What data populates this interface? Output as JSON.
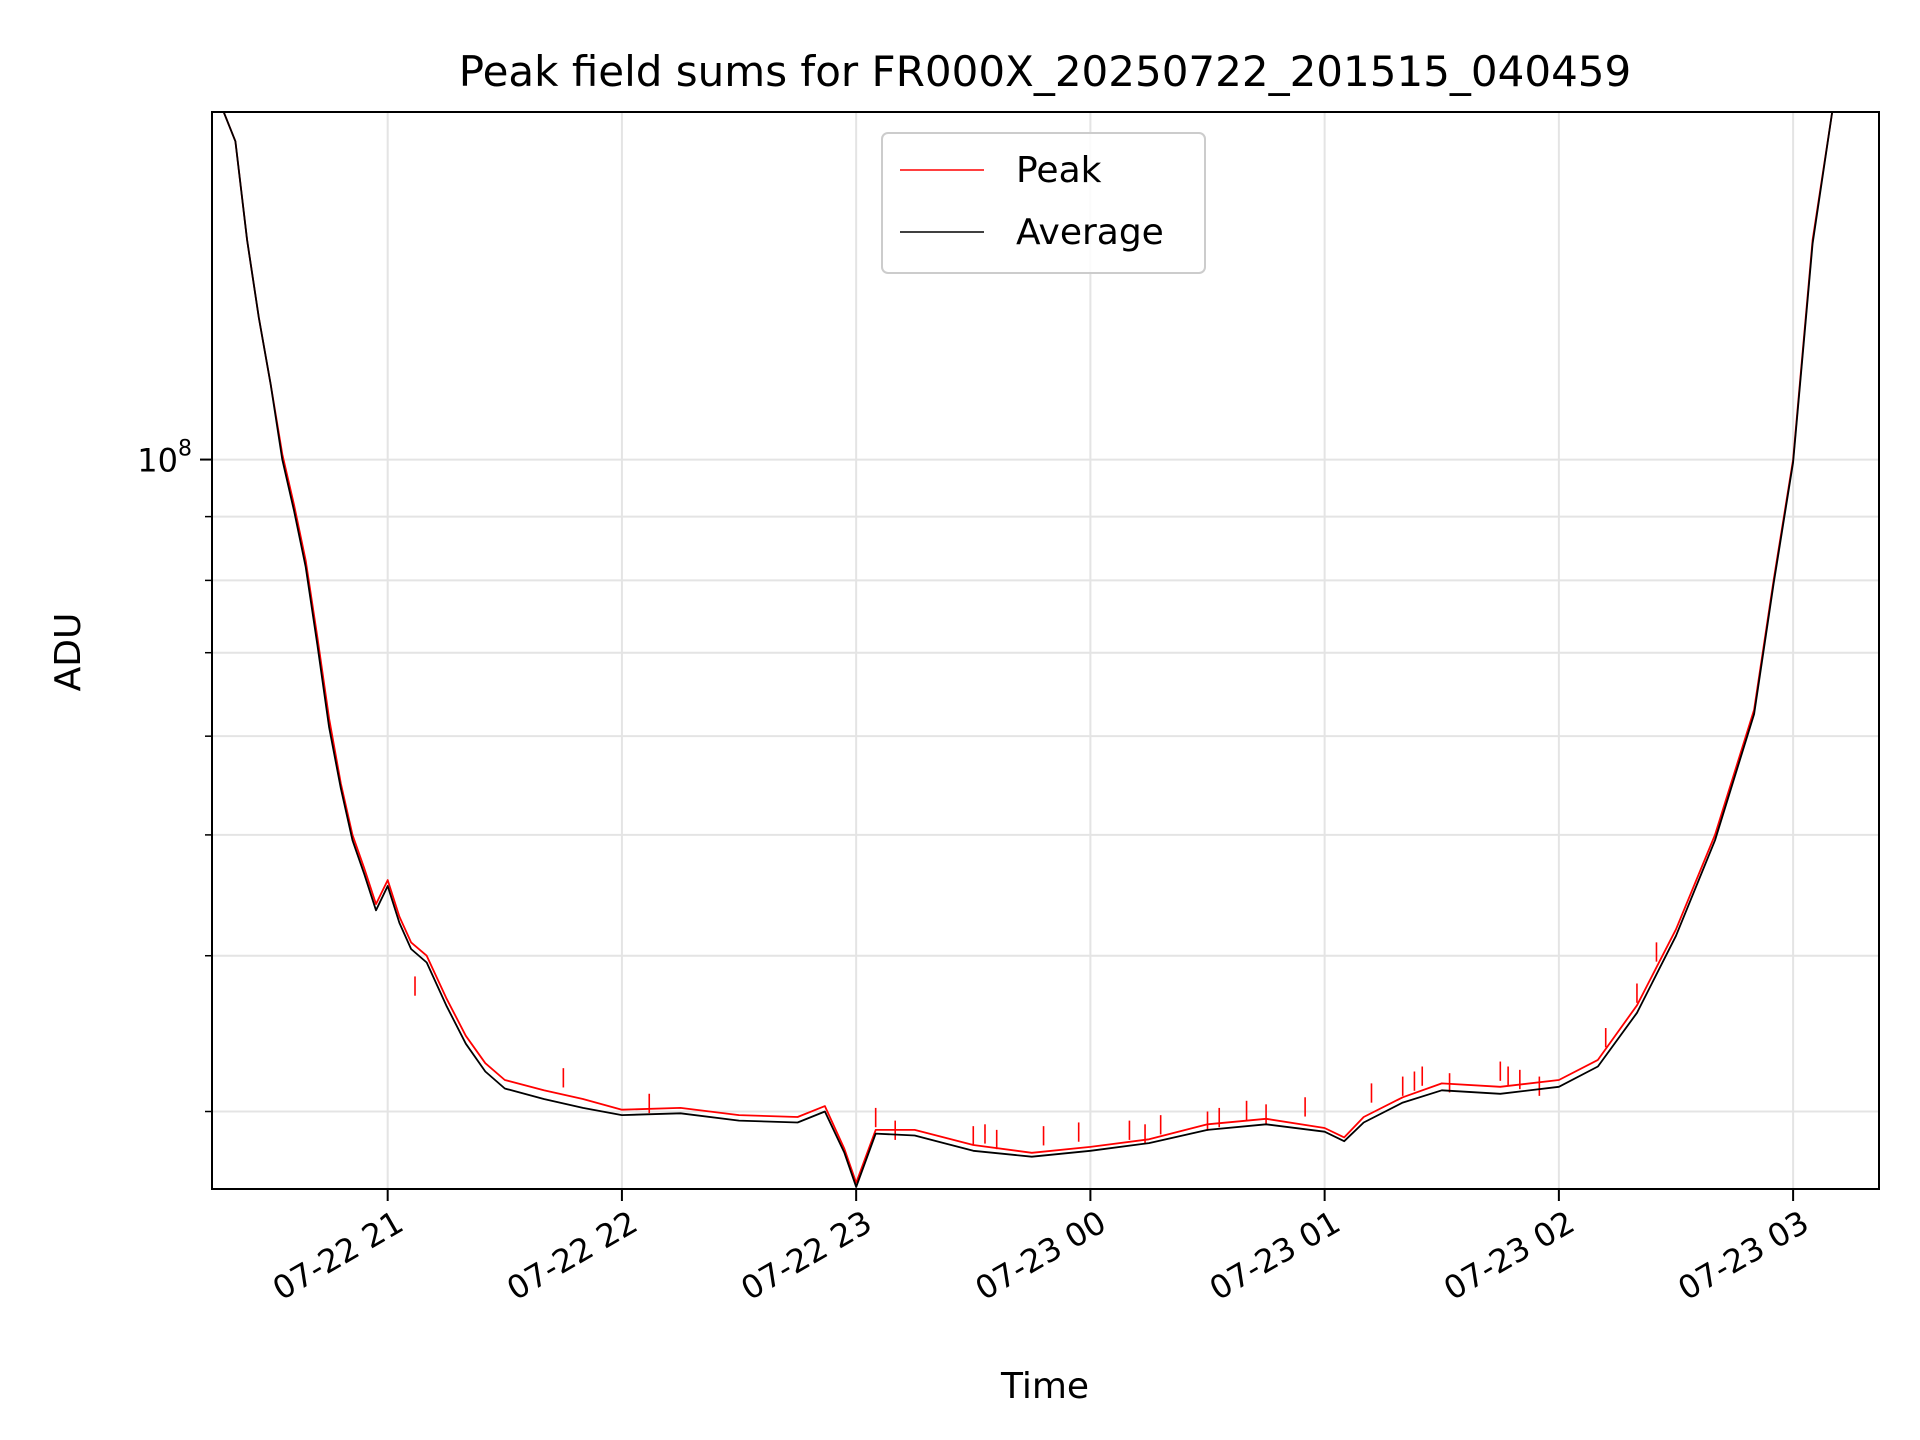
{
  "chart_data": {
    "type": "line",
    "title": "Peak field sums for FR000X_20250722_201515_040459",
    "xlabel": "Time",
    "ylabel": "ADU",
    "yscale": "log",
    "xlim": [
      "2025-07-22T20:15:00",
      "2025-07-23T03:22:00"
    ],
    "ylim": [
      26000000,
      190000000
    ],
    "x_ticks": [
      {
        "x": "2025-07-22T21:00:00",
        "label": "07-22 21"
      },
      {
        "x": "2025-07-22T22:00:00",
        "label": "07-22 22"
      },
      {
        "x": "2025-07-22T23:00:00",
        "label": "07-22 23"
      },
      {
        "x": "2025-07-23T00:00:00",
        "label": "07-23 00"
      },
      {
        "x": "2025-07-23T01:00:00",
        "label": "07-23 01"
      },
      {
        "x": "2025-07-23T02:00:00",
        "label": "07-23 02"
      },
      {
        "x": "2025-07-23T03:00:00",
        "label": "07-23 03"
      }
    ],
    "y_tick_major": {
      "value": 100000000,
      "label_base": "10",
      "label_exp": "8"
    },
    "y_minor_ticks": [
      30000000,
      40000000,
      50000000,
      60000000,
      70000000,
      80000000,
      90000000,
      200000000
    ],
    "grid": true,
    "legend_placement": "upper-center",
    "series": [
      {
        "name": "Peak",
        "color": "#ff0000",
        "x": [
          "2025-07-22T20:18:00",
          "2025-07-22T20:21:00",
          "2025-07-22T20:24:00",
          "2025-07-22T20:27:00",
          "2025-07-22T20:30:00",
          "2025-07-22T20:33:00",
          "2025-07-22T20:36:00",
          "2025-07-22T20:39:00",
          "2025-07-22T20:42:00",
          "2025-07-22T20:45:00",
          "2025-07-22T20:48:00",
          "2025-07-22T20:51:00",
          "2025-07-22T20:54:00",
          "2025-07-22T20:57:00",
          "2025-07-22T21:00:00",
          "2025-07-22T21:03:00",
          "2025-07-22T21:06:00",
          "2025-07-22T21:10:00",
          "2025-07-22T21:15:00",
          "2025-07-22T21:20:00",
          "2025-07-22T21:25:00",
          "2025-07-22T21:30:00",
          "2025-07-22T21:40:00",
          "2025-07-22T21:50:00",
          "2025-07-22T22:00:00",
          "2025-07-22T22:15:00",
          "2025-07-22T22:30:00",
          "2025-07-22T22:45:00",
          "2025-07-22T22:52:00",
          "2025-07-22T22:57:00",
          "2025-07-22T23:00:00",
          "2025-07-22T23:05:00",
          "2025-07-22T23:15:00",
          "2025-07-22T23:30:00",
          "2025-07-22T23:45:00",
          "2025-07-23T00:00:00",
          "2025-07-23T00:15:00",
          "2025-07-23T00:30:00",
          "2025-07-23T00:45:00",
          "2025-07-23T01:00:00",
          "2025-07-23T01:05:00",
          "2025-07-23T01:10:00",
          "2025-07-23T01:20:00",
          "2025-07-23T01:30:00",
          "2025-07-23T01:45:00",
          "2025-07-23T02:00:00",
          "2025-07-23T02:10:00",
          "2025-07-23T02:20:00",
          "2025-07-23T02:30:00",
          "2025-07-23T02:40:00",
          "2025-07-23T02:50:00",
          "2025-07-23T02:55:00",
          "2025-07-23T03:00:00",
          "2025-07-23T03:05:00",
          "2025-07-23T03:10:00"
        ],
        "values": [
          190000000,
          180000000,
          150000000,
          130000000,
          115000000,
          101000000,
          92000000,
          83000000,
          72000000,
          62000000,
          55000000,
          50000000,
          47000000,
          44000000,
          46000000,
          43000000,
          41000000,
          40000000,
          37000000,
          34500000,
          32800000,
          31800000,
          31200000,
          30700000,
          30100000,
          30200000,
          29800000,
          29700000,
          30300000,
          28000000,
          26300000,
          29000000,
          29000000,
          28200000,
          27800000,
          28100000,
          28500000,
          29300000,
          29600000,
          29100000,
          28600000,
          29700000,
          30800000,
          31600000,
          31400000,
          31800000,
          33000000,
          36500000,
          42000000,
          50000000,
          63000000,
          80000000,
          100000000,
          150000000,
          190000000
        ]
      },
      {
        "name": "Average",
        "color": "#000000",
        "x": [
          "2025-07-22T20:18:00",
          "2025-07-22T20:21:00",
          "2025-07-22T20:24:00",
          "2025-07-22T20:27:00",
          "2025-07-22T20:30:00",
          "2025-07-22T20:33:00",
          "2025-07-22T20:36:00",
          "2025-07-22T20:39:00",
          "2025-07-22T20:42:00",
          "2025-07-22T20:45:00",
          "2025-07-22T20:48:00",
          "2025-07-22T20:51:00",
          "2025-07-22T20:54:00",
          "2025-07-22T20:57:00",
          "2025-07-22T21:00:00",
          "2025-07-22T21:03:00",
          "2025-07-22T21:06:00",
          "2025-07-22T21:10:00",
          "2025-07-22T21:15:00",
          "2025-07-22T21:20:00",
          "2025-07-22T21:25:00",
          "2025-07-22T21:30:00",
          "2025-07-22T21:40:00",
          "2025-07-22T21:50:00",
          "2025-07-22T22:00:00",
          "2025-07-22T22:15:00",
          "2025-07-22T22:30:00",
          "2025-07-22T22:45:00",
          "2025-07-22T22:52:00",
          "2025-07-22T22:57:00",
          "2025-07-22T23:00:00",
          "2025-07-22T23:05:00",
          "2025-07-22T23:15:00",
          "2025-07-22T23:30:00",
          "2025-07-22T23:45:00",
          "2025-07-23T00:00:00",
          "2025-07-23T00:15:00",
          "2025-07-23T00:30:00",
          "2025-07-23T00:45:00",
          "2025-07-23T01:00:00",
          "2025-07-23T01:05:00",
          "2025-07-23T01:10:00",
          "2025-07-23T01:20:00",
          "2025-07-23T01:30:00",
          "2025-07-23T01:45:00",
          "2025-07-23T02:00:00",
          "2025-07-23T02:10:00",
          "2025-07-23T02:20:00",
          "2025-07-23T02:30:00",
          "2025-07-23T02:40:00",
          "2025-07-23T02:50:00",
          "2025-07-23T02:55:00",
          "2025-07-23T03:00:00",
          "2025-07-23T03:05:00",
          "2025-07-23T03:10:00"
        ],
        "values": [
          190000000,
          180000000,
          150000000,
          130000000,
          115000000,
          100000000,
          91000000,
          82000000,
          71000000,
          61000000,
          54500000,
          49500000,
          46500000,
          43500000,
          45500000,
          42500000,
          40500000,
          39500000,
          36500000,
          34000000,
          32300000,
          31300000,
          30700000,
          30200000,
          29800000,
          29900000,
          29500000,
          29400000,
          30000000,
          27800000,
          26100000,
          28800000,
          28700000,
          27900000,
          27600000,
          27900000,
          28300000,
          29000000,
          29300000,
          28900000,
          28400000,
          29400000,
          30500000,
          31200000,
          31000000,
          31400000,
          32600000,
          36000000,
          41500000,
          49500000,
          62500000,
          79500000,
          99500000,
          149000000,
          190000000
        ]
      }
    ],
    "peak_spikes": [
      {
        "x": "2025-07-22T21:07:00",
        "value": 38500000
      },
      {
        "x": "2025-07-22T21:45:00",
        "value": 32500000
      },
      {
        "x": "2025-07-22T22:07:00",
        "value": 31000000
      },
      {
        "x": "2025-07-22T23:05:00",
        "value": 30200000
      },
      {
        "x": "2025-07-22T23:10:00",
        "value": 29500000
      },
      {
        "x": "2025-07-22T23:30:00",
        "value": 29200000
      },
      {
        "x": "2025-07-22T23:33:00",
        "value": 29300000
      },
      {
        "x": "2025-07-22T23:36:00",
        "value": 29000000
      },
      {
        "x": "2025-07-22T23:48:00",
        "value": 29200000
      },
      {
        "x": "2025-07-22T23:57:00",
        "value": 29400000
      },
      {
        "x": "2025-07-23T00:10:00",
        "value": 29500000
      },
      {
        "x": "2025-07-23T00:14:00",
        "value": 29300000
      },
      {
        "x": "2025-07-23T00:18:00",
        "value": 29800000
      },
      {
        "x": "2025-07-23T00:30:00",
        "value": 30000000
      },
      {
        "x": "2025-07-23T00:33:00",
        "value": 30200000
      },
      {
        "x": "2025-07-23T00:40:00",
        "value": 30600000
      },
      {
        "x": "2025-07-23T00:45:00",
        "value": 30400000
      },
      {
        "x": "2025-07-23T00:55:00",
        "value": 30800000
      },
      {
        "x": "2025-07-23T01:12:00",
        "value": 31600000
      },
      {
        "x": "2025-07-23T01:20:00",
        "value": 32000000
      },
      {
        "x": "2025-07-23T01:23:00",
        "value": 32300000
      },
      {
        "x": "2025-07-23T01:25:00",
        "value": 32600000
      },
      {
        "x": "2025-07-23T01:32:00",
        "value": 32200000
      },
      {
        "x": "2025-07-23T01:45:00",
        "value": 32900000
      },
      {
        "x": "2025-07-23T01:47:00",
        "value": 32600000
      },
      {
        "x": "2025-07-23T01:50:00",
        "value": 32400000
      },
      {
        "x": "2025-07-23T01:55:00",
        "value": 32000000
      },
      {
        "x": "2025-07-23T02:12:00",
        "value": 35000000
      },
      {
        "x": "2025-07-23T02:20:00",
        "value": 38000000
      },
      {
        "x": "2025-07-23T02:25:00",
        "value": 41000000
      }
    ]
  }
}
